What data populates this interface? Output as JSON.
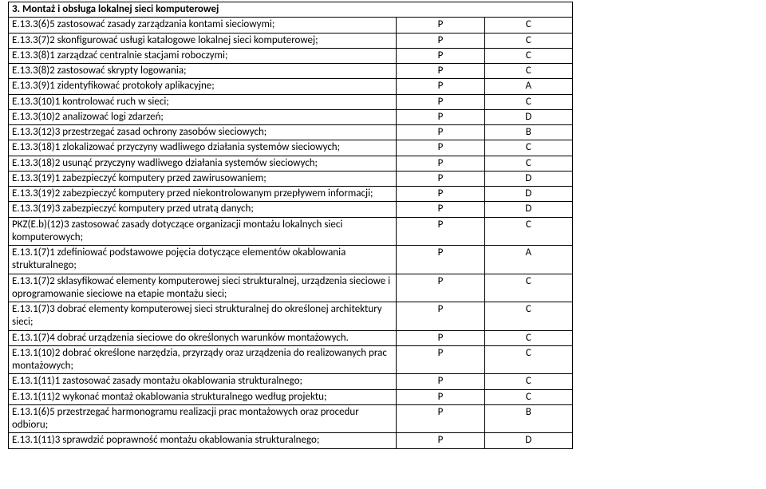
{
  "section_header": "3. Montaż i obsługa lokalnej sieci komputerowej",
  "rows": [
    {
      "desc": "E.13.3(6)5 zastosować zasady zarządzania kontami sieciowymi;",
      "c1": "P",
      "c2": "C"
    },
    {
      "desc": "E.13.3(7)2 skonfigurować usługi katalogowe lokalnej sieci komputerowej;",
      "c1": "P",
      "c2": "C"
    },
    {
      "desc": "E.13.3(8)1 zarządzać centralnie stacjami roboczymi;",
      "c1": "P",
      "c2": "C"
    },
    {
      "desc": "E.13.3(8)2 zastosować skrypty logowania;",
      "c1": "P",
      "c2": "C"
    },
    {
      "desc": "E.13.3(9)1 zidentyfikować protokoły aplikacyjne;",
      "c1": "P",
      "c2": "A"
    },
    {
      "desc": "E.13.3(10)1 kontrolować ruch w sieci;",
      "c1": "P",
      "c2": "C"
    },
    {
      "desc": "E.13.3(10)2 analizować logi zdarzeń;",
      "c1": "P",
      "c2": "D"
    },
    {
      "desc": "E.13.3(12)3 przestrzegać zasad ochrony zasobów sieciowych;",
      "c1": "P",
      "c2": "B"
    },
    {
      "desc": "E.13.3(18)1 zlokalizować przyczyny wadliwego działania systemów sieciowych;",
      "c1": "P",
      "c2": "C"
    },
    {
      "desc": "E.13.3(18)2 usunąć przyczyny wadliwego działania systemów sieciowych;",
      "c1": "P",
      "c2": "C"
    },
    {
      "desc": "E.13.3(19)1 zabezpieczyć komputery przed zawirusowaniem;",
      "c1": "P",
      "c2": "D"
    },
    {
      "desc": "E.13.3(19)2 zabezpieczyć komputery przed niekontrolowanym przepływem informacji;",
      "c1": "P",
      "c2": "D"
    },
    {
      "desc": "E.13.3(19)3 zabezpieczyć komputery przed utratą danych;",
      "c1": "P",
      "c2": "D"
    },
    {
      "desc": "PKZ(E.b)(12)3 zastosować zasady dotyczące organizacji montażu lokalnych sieci komputerowych;",
      "c1": "P",
      "c2": "C"
    },
    {
      "desc": "E.13.1(7)1 zdefiniować podstawowe pojęcia dotyczące elementów okablowania strukturalnego;",
      "c1": "P",
      "c2": "A"
    },
    {
      "desc": "E.13.1(7)2 sklasyfikować elementy komputerowej sieci strukturalnej, urządzenia sieciowe i oprogramowanie sieciowe na etapie montażu sieci;",
      "c1": "P",
      "c2": "C"
    },
    {
      "desc": "E.13.1(7)3 dobrać elementy komputerowej sieci strukturalnej do określonej architektury sieci;",
      "c1": "P",
      "c2": "C"
    },
    {
      "desc": "E.13.1(7)4 dobrać urządzenia sieciowe do określonych warunków montażowych.",
      "c1": "P",
      "c2": "C"
    },
    {
      "desc": "E.13.1(10)2 dobrać określone narzędzia, przyrządy oraz urządzenia do realizowanych prac montażowych;",
      "c1": "P",
      "c2": "C"
    },
    {
      "desc": "E.13.1(11)1 zastosować zasady montażu okablowania strukturalnego;",
      "c1": "P",
      "c2": "C"
    },
    {
      "desc": "E.13.1(11)2 wykonać montaż okablowania strukturalnego według projektu;",
      "c1": "P",
      "c2": "C"
    },
    {
      "desc": "E.13.1(6)5 przestrzegać harmonogramu realizacji prac montażowych oraz procedur odbioru;",
      "c1": "P",
      "c2": "B"
    },
    {
      "desc": "E.13.1(11)3 sprawdzić poprawność montażu okablowania strukturalnego;",
      "c1": "P",
      "c2": "D"
    }
  ]
}
